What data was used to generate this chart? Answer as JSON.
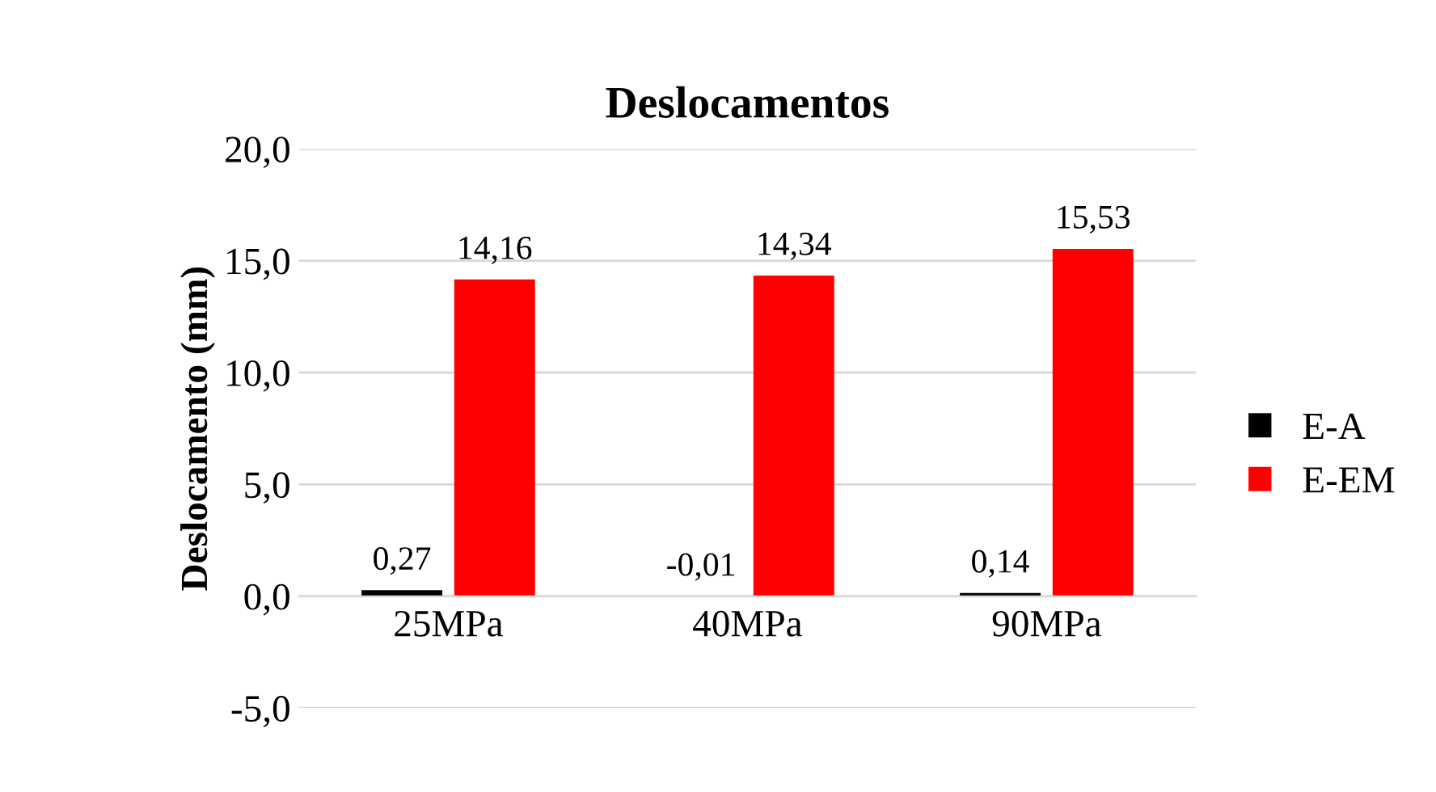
{
  "chart_data": {
    "type": "bar",
    "title": "Deslocamentos",
    "ylabel": "Deslocamento (mm)",
    "categories": [
      "25MPa",
      "40MPa",
      "90MPa"
    ],
    "series": [
      {
        "name": "E-A",
        "color": "#000000",
        "values": [
          0.27,
          -0.01,
          0.14
        ],
        "value_labels": [
          "0,27",
          "-0,01",
          "0,14"
        ]
      },
      {
        "name": "E-EM",
        "color": "#ff0000",
        "values": [
          14.16,
          14.34,
          15.53
        ],
        "value_labels": [
          "14,16",
          "14,34",
          "15,53"
        ]
      }
    ],
    "ylim": [
      -5,
      20
    ],
    "yticks": [
      {
        "value": -5,
        "label": "-5,0"
      },
      {
        "value": 0,
        "label": "0,0"
      },
      {
        "value": 5,
        "label": "5,0"
      },
      {
        "value": 10,
        "label": "10,0"
      },
      {
        "value": 15,
        "label": "15,0"
      },
      {
        "value": 20,
        "label": "20,0"
      }
    ],
    "grid": "y",
    "legend": "right"
  }
}
